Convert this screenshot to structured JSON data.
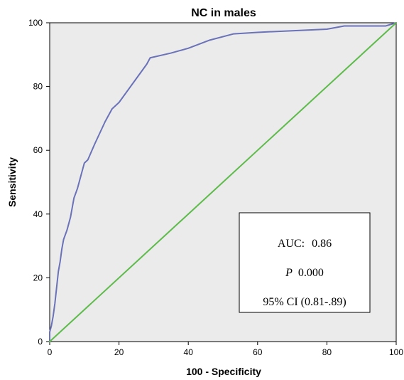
{
  "chart_data": {
    "type": "line",
    "title": "NC in males",
    "xlabel": "100 - Specificity",
    "ylabel": "Sensitivity",
    "xlim": [
      0,
      100
    ],
    "ylim": [
      0,
      100
    ],
    "x_ticks": [
      0,
      20,
      40,
      60,
      80,
      100
    ],
    "y_ticks": [
      0,
      20,
      40,
      60,
      80,
      100
    ],
    "grid": false,
    "series": [
      {
        "color": "#6a72b8",
        "points": [
          [
            0,
            0
          ],
          [
            0,
            3
          ],
          [
            0.5,
            5
          ],
          [
            1,
            8
          ],
          [
            1.5,
            12
          ],
          [
            2,
            17
          ],
          [
            2.5,
            22
          ],
          [
            3,
            25
          ],
          [
            3.5,
            29
          ],
          [
            4,
            32
          ],
          [
            5,
            35
          ],
          [
            6,
            39
          ],
          [
            6.5,
            42
          ],
          [
            7,
            45
          ],
          [
            8,
            48
          ],
          [
            9,
            52
          ],
          [
            10,
            56
          ],
          [
            11,
            57
          ],
          [
            13,
            62
          ],
          [
            16,
            69
          ],
          [
            18,
            73
          ],
          [
            20,
            75
          ],
          [
            24,
            81
          ],
          [
            28,
            87
          ],
          [
            29,
            89
          ],
          [
            35,
            90.5
          ],
          [
            40,
            92
          ],
          [
            46,
            94.5
          ],
          [
            53,
            96.5
          ],
          [
            60,
            97
          ],
          [
            70,
            97.5
          ],
          [
            80,
            98
          ],
          [
            85,
            99
          ],
          [
            90,
            99
          ],
          [
            97,
            99
          ],
          [
            100,
            100
          ]
        ]
      },
      {
        "color": "#5dbb4a",
        "points": [
          [
            0,
            0
          ],
          [
            100,
            100
          ]
        ]
      }
    ],
    "annotation": {
      "auc_label": "AUC:",
      "auc_value": "0.86",
      "p_label": "P",
      "p_value": "0.000",
      "ci_text": "95% CI (0.81-.89)"
    },
    "colors": {
      "plot_background": "#ebebeb",
      "axis": "#000000",
      "annotation_box_fill": "#ffffff",
      "annotation_box_stroke": "#000000"
    }
  }
}
